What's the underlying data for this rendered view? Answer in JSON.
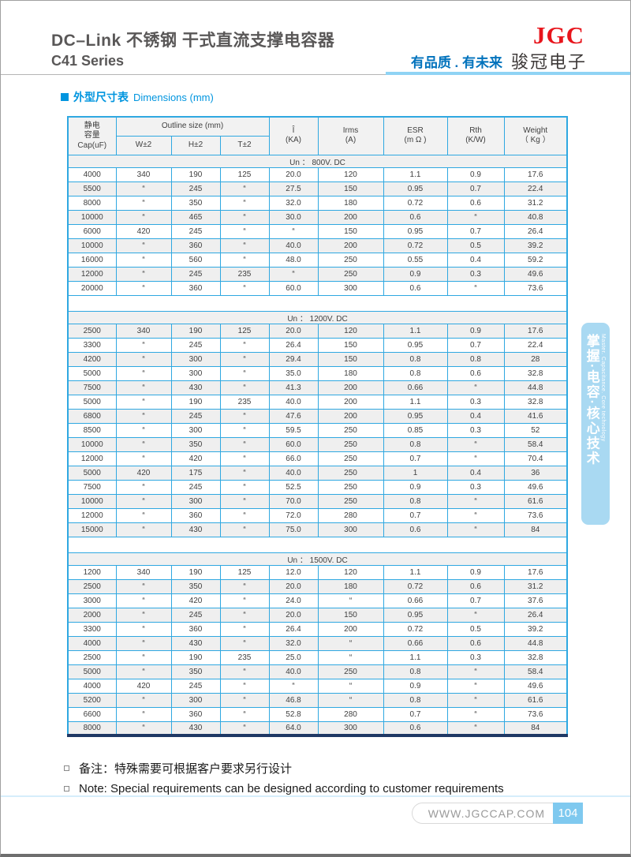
{
  "header": {
    "title_line1": "DC–Link 不锈钢  干式直流支撑电容器",
    "title_line2": "C41 Series",
    "logo": "JGC",
    "slogan": "有品质 . 有未来",
    "company": "骏冠电子"
  },
  "section_title": {
    "zh": "外型尺寸表",
    "en": "Dimensions  (mm)"
  },
  "table": {
    "header": {
      "cap": [
        "静电",
        "容量",
        "Cap(uF)"
      ],
      "outline": "Outline size  (mm)",
      "w": "W±2",
      "h": "H±2",
      "t": "T±2",
      "peak": [
        "Î",
        "(KA)"
      ],
      "irms": [
        "Irms",
        "(A)"
      ],
      "esr": [
        "ESR",
        "(m Ω )"
      ],
      "rth": [
        "Rth",
        "(K/W)"
      ],
      "weight": [
        "Weight",
        "（ Kg ）"
      ]
    },
    "sections": [
      {
        "voltage": "Un ：  800V. DC",
        "rows": [
          [
            "4000",
            "340",
            "190",
            "125",
            "20.0",
            "120",
            "1.1",
            "0.9",
            "17.6"
          ],
          [
            "5500",
            "“",
            "245",
            "“",
            "27.5",
            "150",
            "0.95",
            "0.7",
            "22.4"
          ],
          [
            "8000",
            "“",
            "350",
            "“",
            "32.0",
            "180",
            "0.72",
            "0.6",
            "31.2"
          ],
          [
            "10000",
            "“",
            "465",
            "“",
            "30.0",
            "200",
            "0.6",
            "“",
            "40.8"
          ],
          [
            "6000",
            "420",
            "245",
            "“",
            "“",
            "150",
            "0.95",
            "0.7",
            "26.4"
          ],
          [
            "10000",
            "“",
            "360",
            "“",
            "40.0",
            "200",
            "0.72",
            "0.5",
            "39.2"
          ],
          [
            "16000",
            "“",
            "560",
            "“",
            "48.0",
            "250",
            "0.55",
            "0.4",
            "59.2"
          ],
          [
            "12000",
            "“",
            "245",
            "235",
            "“",
            "250",
            "0.9",
            "0.3",
            "49.6"
          ],
          [
            "20000",
            "“",
            "360",
            "“",
            "60.0",
            "300",
            "0.6",
            "“",
            "73.6"
          ]
        ]
      },
      {
        "voltage": "Un ：  1200V. DC",
        "rows": [
          [
            "2500",
            "340",
            "190",
            "125",
            "20.0",
            "120",
            "1.1",
            "0.9",
            "17.6"
          ],
          [
            "3300",
            "“",
            "245",
            "“",
            "26.4",
            "150",
            "0.95",
            "0.7",
            "22.4"
          ],
          [
            "4200",
            "“",
            "300",
            "“",
            "29.4",
            "150",
            "0.8",
            "0.8",
            "28"
          ],
          [
            "5000",
            "“",
            "300",
            "“",
            "35.0",
            "180",
            "0.8",
            "0.6",
            "32.8"
          ],
          [
            "7500",
            "“",
            "430",
            "“",
            "41.3",
            "200",
            "0.66",
            "“",
            "44.8"
          ],
          [
            "5000",
            "“",
            "190",
            "235",
            "40.0",
            "200",
            "1.1",
            "0.3",
            "32.8"
          ],
          [
            "6800",
            "“",
            "245",
            "“",
            "47.6",
            "200",
            "0.95",
            "0.4",
            "41.6"
          ],
          [
            "8500",
            "“",
            "300",
            "“",
            "59.5",
            "250",
            "0.85",
            "0.3",
            "52"
          ],
          [
            "10000",
            "“",
            "350",
            "“",
            "60.0",
            "250",
            "0.8",
            "“",
            "58.4"
          ],
          [
            "12000",
            "“",
            "420",
            "“",
            "66.0",
            "250",
            "0.7",
            "“",
            "70.4"
          ],
          [
            "5000",
            "420",
            "175",
            "“",
            "40.0",
            "250",
            "1",
            "0.4",
            "36"
          ],
          [
            "7500",
            "“",
            "245",
            "“",
            "52.5",
            "250",
            "0.9",
            "0.3",
            "49.6"
          ],
          [
            "10000",
            "“",
            "300",
            "“",
            "70.0",
            "250",
            "0.8",
            "“",
            "61.6"
          ],
          [
            "12000",
            "“",
            "360",
            "“",
            "72.0",
            "280",
            "0.7",
            "“",
            "73.6"
          ],
          [
            "15000",
            "“",
            "430",
            "“",
            "75.0",
            "300",
            "0.6",
            "“",
            "84"
          ]
        ]
      },
      {
        "voltage": "Un ：  1500V. DC",
        "rows": [
          [
            "1200",
            "340",
            "190",
            "125",
            "12.0",
            "120",
            "1.1",
            "0.9",
            "17.6"
          ],
          [
            "2500",
            "“",
            "350",
            "“",
            "20.0",
            "180",
            "0.72",
            "0.6",
            "31.2"
          ],
          [
            "3000",
            "“",
            "420",
            "“",
            "24.0",
            "“",
            "0.66",
            "0.7",
            "37.6"
          ],
          [
            "2000",
            "“",
            "245",
            "“",
            "20.0",
            "150",
            "0.95",
            "“",
            "26.4"
          ],
          [
            "3300",
            "“",
            "360",
            "“",
            "26.4",
            "200",
            "0.72",
            "0.5",
            "39.2"
          ],
          [
            "4000",
            "“",
            "430",
            "“",
            "32.0",
            "“",
            "0.66",
            "0.6",
            "44.8"
          ],
          [
            "2500",
            "“",
            "190",
            "235",
            "25.0",
            "“",
            "1.1",
            "0.3",
            "32.8"
          ],
          [
            "5000",
            "“",
            "350",
            "“",
            "40.0",
            "250",
            "0.8",
            "“",
            "58.4"
          ],
          [
            "4000",
            "420",
            "245",
            "“",
            "“",
            "“",
            "0.9",
            "“",
            "49.6"
          ],
          [
            "5200",
            "“",
            "300",
            "“",
            "46.8",
            "“",
            "0.8",
            "“",
            "61.6"
          ],
          [
            "6600",
            "“",
            "360",
            "“",
            "52.8",
            "280",
            "0.7",
            "“",
            "73.6"
          ],
          [
            "8000",
            "“",
            "430",
            "“",
            "64.0",
            "300",
            "0.6",
            "“",
            "84"
          ]
        ]
      }
    ]
  },
  "notes": {
    "zh": "备注：特殊需要可根据客户要求另行设计",
    "en": "Note: Special requirements can be designed according to customer requirements"
  },
  "sidebar": {
    "zh": "掌握·电容·核心技术",
    "en": "Master. Capacitance. Core technology"
  },
  "footer": {
    "url": "WWW.JGCCAP.COM",
    "page": "104"
  },
  "colors": {
    "accent_blue": "#2fa8e1",
    "deep_blue": "#0072bc",
    "section_blue": "#0095df",
    "logo_red": "#e8151c",
    "row_shade": "#efefef",
    "table_bottom": "#1f3864",
    "sidebar_blue": "#a9d9f2",
    "page_box_blue": "#7fc9ef"
  }
}
